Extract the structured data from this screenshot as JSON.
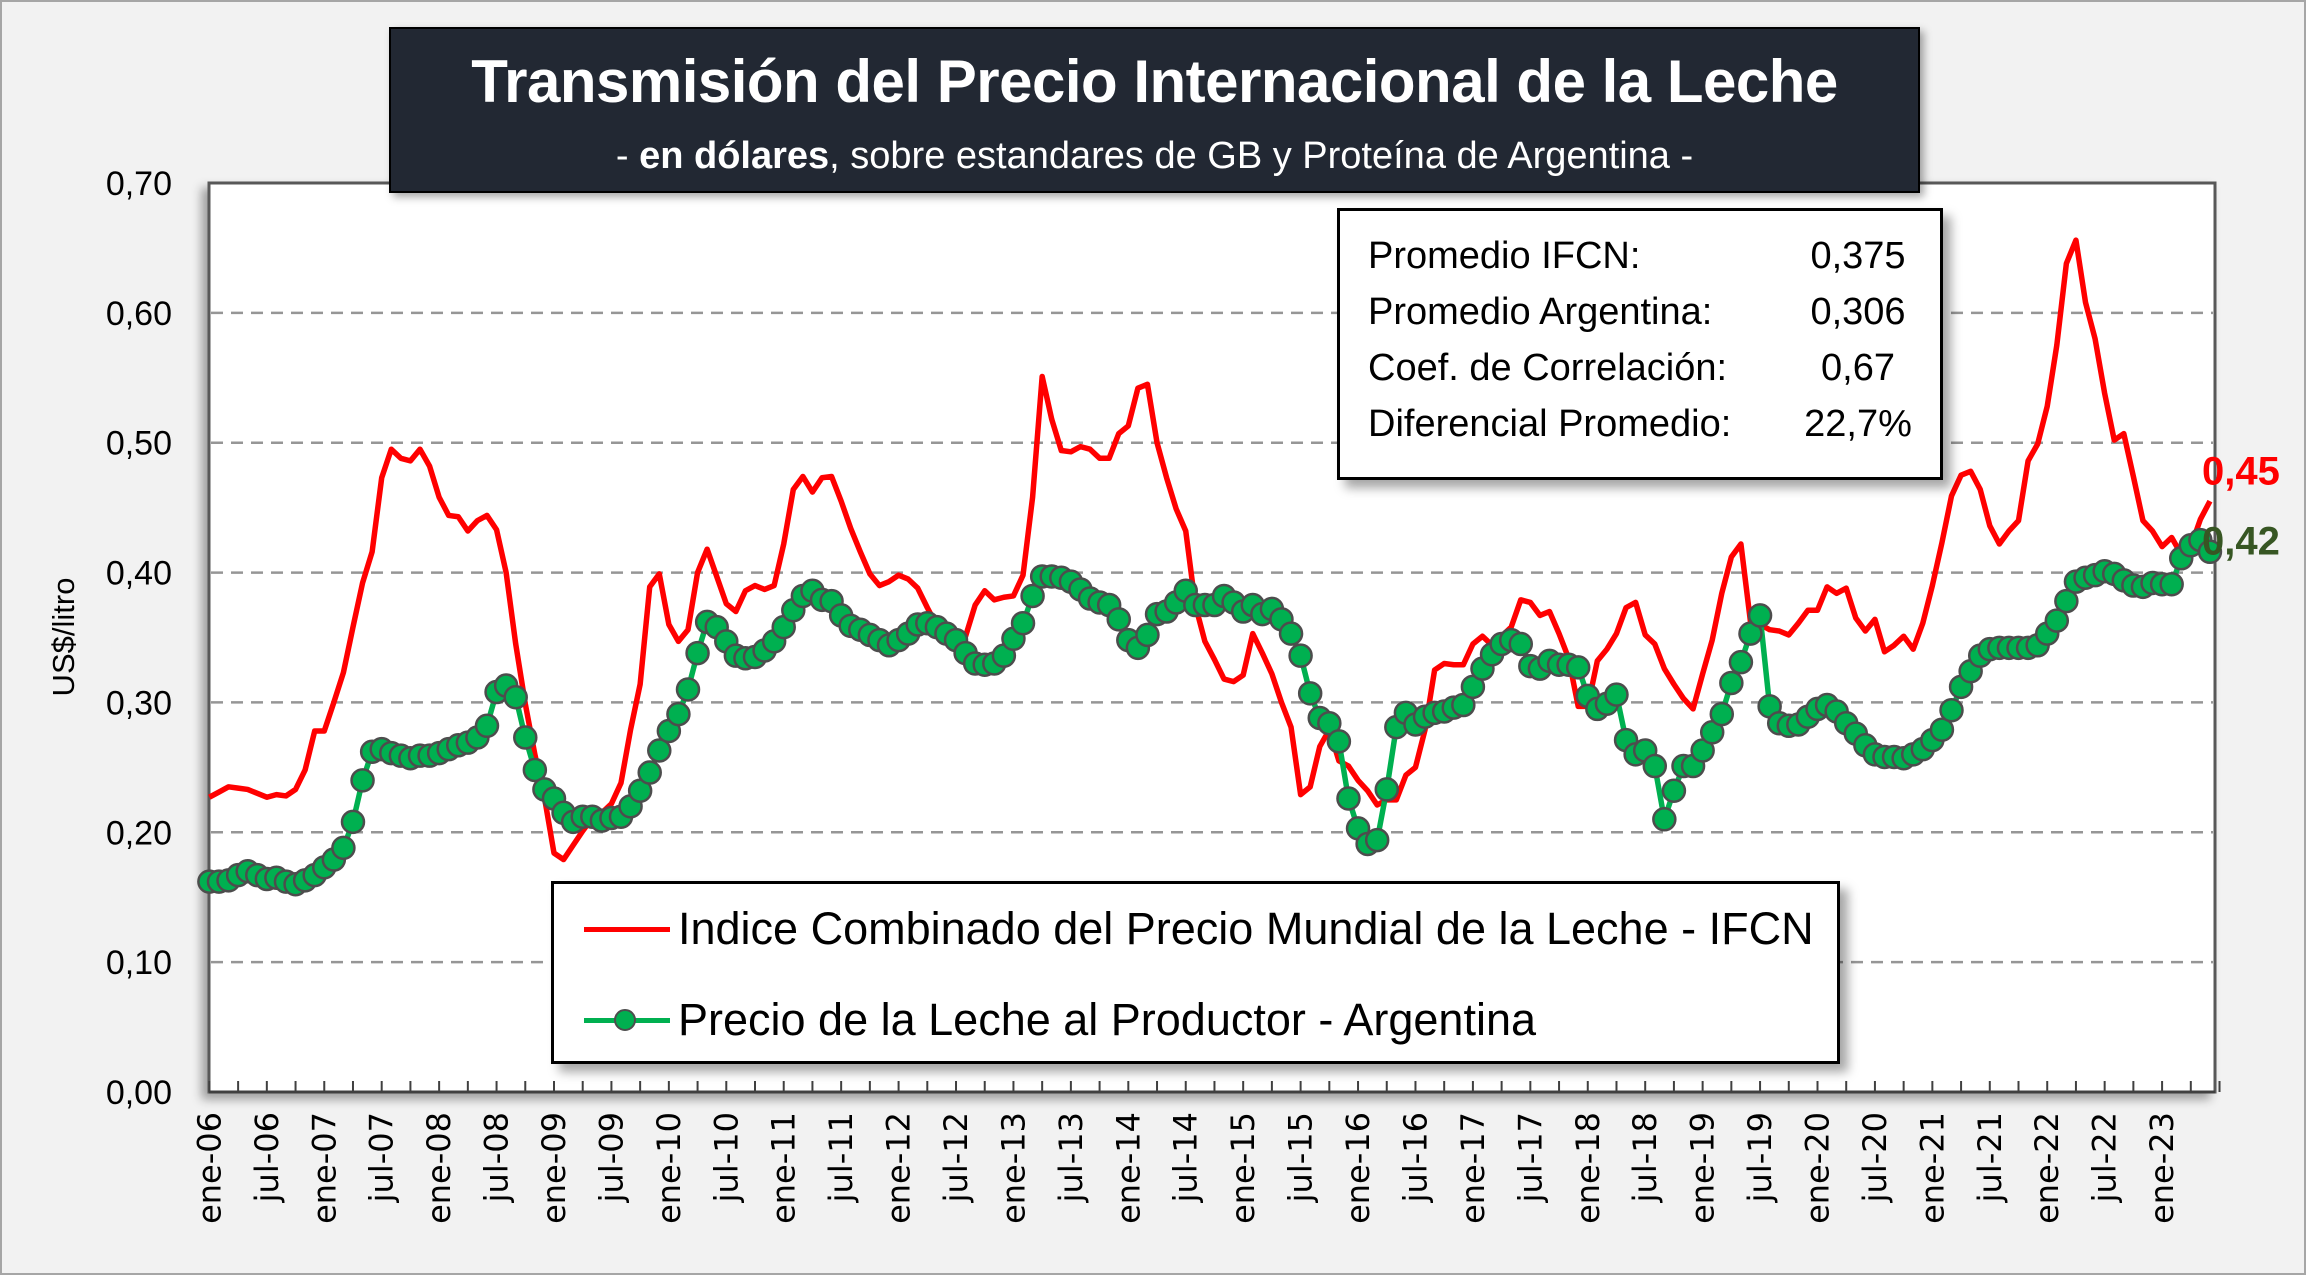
{
  "title": {
    "main": "Transmisión del Precio Internacional de la Leche",
    "sub_prefix": "- ",
    "sub_bold": "en dólares",
    "sub_suffix": ", sobre estandares de GB y Proteína de  Argentina -"
  },
  "stats": [
    {
      "label": "Promedio IFCN:",
      "value": "0,375"
    },
    {
      "label": "Promedio Argentina:",
      "value": "0,306"
    },
    {
      "label": "Coef. de Correlación:",
      "value": "0,67"
    },
    {
      "label": "Diferencial Promedio:",
      "value": "22,7%"
    }
  ],
  "end_labels": {
    "ifcn": "0,45",
    "argentina": "0,42"
  },
  "colors": {
    "ifcn": "#ff0000",
    "argentina": "#00b050",
    "argentina_label": "#375623",
    "title_bg": "#222833",
    "grid": "#969696"
  },
  "chart_data": {
    "type": "line",
    "title": "Transmisión del Precio Internacional de la Leche",
    "subtitle": "- en dólares, sobre estandares de GB y Proteína de  Argentina -",
    "xlabel": "",
    "ylabel": "US$/litro",
    "ylim": [
      0,
      0.7
    ],
    "y_ticks": [
      "0,00",
      "0,10",
      "0,20",
      "0,30",
      "0,40",
      "0,50",
      "0,60",
      "0,70"
    ],
    "x_start": "2006-01",
    "x_step": "month",
    "x_tick_labels": [
      "ene-06",
      "jul-06",
      "ene-07",
      "jul-07",
      "ene-08",
      "jul-08",
      "ene-09",
      "jul-09",
      "ene-10",
      "jul-10",
      "ene-11",
      "jul-11",
      "ene-12",
      "jul-12",
      "ene-13",
      "jul-13",
      "ene-14",
      "jul-14",
      "ene-15",
      "jul-15",
      "ene-16",
      "jul-16",
      "ene-17",
      "jul-17",
      "ene-18",
      "jul-18",
      "ene-19",
      "jul-19",
      "ene-20",
      "jul-20",
      "ene-21",
      "jul-21",
      "ene-22",
      "jul-22",
      "ene-23"
    ],
    "grid": true,
    "legend_position": "bottom-center",
    "series": [
      {
        "name": "Indice Combinado del Precio Mundial de la Leche - IFCN",
        "color": "#ff0000",
        "marker": false,
        "values": [
          0.227,
          0.231,
          0.235,
          0.234,
          0.233,
          0.23,
          0.227,
          0.229,
          0.228,
          0.233,
          0.248,
          0.278,
          0.278,
          0.3,
          0.323,
          0.358,
          0.392,
          0.416,
          0.473,
          0.495,
          0.488,
          0.486,
          0.495,
          0.482,
          0.458,
          0.444,
          0.443,
          0.432,
          0.44,
          0.444,
          0.433,
          0.4,
          0.345,
          0.299,
          0.26,
          0.227,
          0.184,
          0.179,
          0.19,
          0.201,
          0.211,
          0.215,
          0.222,
          0.238,
          0.279,
          0.314,
          0.389,
          0.399,
          0.36,
          0.347,
          0.356,
          0.4,
          0.418,
          0.397,
          0.376,
          0.37,
          0.386,
          0.39,
          0.387,
          0.39,
          0.422,
          0.464,
          0.474,
          0.462,
          0.473,
          0.474,
          0.455,
          0.434,
          0.416,
          0.399,
          0.39,
          0.393,
          0.398,
          0.395,
          0.388,
          0.373,
          0.359,
          0.355,
          0.35,
          0.351,
          0.375,
          0.386,
          0.379,
          0.381,
          0.382,
          0.398,
          0.458,
          0.551,
          0.518,
          0.494,
          0.493,
          0.497,
          0.495,
          0.488,
          0.488,
          0.507,
          0.513,
          0.542,
          0.545,
          0.5,
          0.473,
          0.449,
          0.432,
          0.375,
          0.347,
          0.333,
          0.318,
          0.316,
          0.321,
          0.353,
          0.338,
          0.322,
          0.3,
          0.281,
          0.229,
          0.235,
          0.266,
          0.279,
          0.255,
          0.251,
          0.24,
          0.232,
          0.221,
          0.225,
          0.225,
          0.244,
          0.25,
          0.279,
          0.325,
          0.33,
          0.329,
          0.329,
          0.345,
          0.351,
          0.344,
          0.351,
          0.358,
          0.379,
          0.377,
          0.367,
          0.37,
          0.353,
          0.334,
          0.297,
          0.297,
          0.332,
          0.341,
          0.353,
          0.373,
          0.377,
          0.352,
          0.345,
          0.326,
          0.314,
          0.303,
          0.295,
          0.322,
          0.348,
          0.384,
          0.412,
          0.422,
          0.362,
          0.36,
          0.356,
          0.355,
          0.352,
          0.361,
          0.371,
          0.371,
          0.389,
          0.384,
          0.388,
          0.365,
          0.355,
          0.364,
          0.339,
          0.344,
          0.351,
          0.341,
          0.361,
          0.39,
          0.423,
          0.459,
          0.475,
          0.478,
          0.464,
          0.436,
          0.422,
          0.432,
          0.44,
          0.486,
          0.499,
          0.528,
          0.575,
          0.638,
          0.656,
          0.608,
          0.58,
          0.538,
          0.502,
          0.507,
          0.474,
          0.44,
          0.432,
          0.42,
          0.427,
          0.414,
          0.42,
          0.441,
          0.455
        ]
      },
      {
        "name": "Precio de la Leche al Productor - Argentina",
        "color": "#00b050",
        "marker": true,
        "values": [
          0.162,
          0.162,
          0.163,
          0.167,
          0.17,
          0.167,
          0.164,
          0.165,
          0.162,
          0.16,
          0.163,
          0.167,
          0.173,
          0.179,
          0.188,
          0.208,
          0.24,
          0.262,
          0.264,
          0.261,
          0.259,
          0.257,
          0.259,
          0.259,
          0.261,
          0.264,
          0.267,
          0.269,
          0.273,
          0.282,
          0.308,
          0.313,
          0.304,
          0.273,
          0.248,
          0.233,
          0.226,
          0.215,
          0.208,
          0.212,
          0.212,
          0.209,
          0.211,
          0.212,
          0.22,
          0.232,
          0.246,
          0.263,
          0.278,
          0.291,
          0.31,
          0.338,
          0.362,
          0.358,
          0.347,
          0.336,
          0.334,
          0.335,
          0.34,
          0.347,
          0.358,
          0.371,
          0.382,
          0.386,
          0.379,
          0.378,
          0.367,
          0.359,
          0.356,
          0.352,
          0.348,
          0.344,
          0.348,
          0.353,
          0.36,
          0.361,
          0.358,
          0.353,
          0.348,
          0.338,
          0.33,
          0.329,
          0.33,
          0.336,
          0.349,
          0.361,
          0.382,
          0.397,
          0.397,
          0.396,
          0.393,
          0.387,
          0.38,
          0.377,
          0.375,
          0.364,
          0.348,
          0.342,
          0.352,
          0.368,
          0.37,
          0.377,
          0.386,
          0.375,
          0.375,
          0.375,
          0.382,
          0.377,
          0.37,
          0.375,
          0.368,
          0.372,
          0.364,
          0.353,
          0.336,
          0.307,
          0.288,
          0.284,
          0.27,
          0.226,
          0.203,
          0.191,
          0.194,
          0.233,
          0.281,
          0.292,
          0.283,
          0.289,
          0.292,
          0.293,
          0.296,
          0.298,
          0.312,
          0.326,
          0.337,
          0.345,
          0.348,
          0.345,
          0.328,
          0.326,
          0.332,
          0.329,
          0.329,
          0.327,
          0.305,
          0.295,
          0.299,
          0.306,
          0.271,
          0.26,
          0.263,
          0.251,
          0.21,
          0.232,
          0.251,
          0.251,
          0.263,
          0.277,
          0.291,
          0.315,
          0.331,
          0.353,
          0.367,
          0.297,
          0.284,
          0.282,
          0.283,
          0.289,
          0.295,
          0.298,
          0.293,
          0.284,
          0.276,
          0.267,
          0.26,
          0.258,
          0.258,
          0.257,
          0.26,
          0.264,
          0.271,
          0.279,
          0.294,
          0.312,
          0.324,
          0.336,
          0.341,
          0.342,
          0.342,
          0.342,
          0.342,
          0.344,
          0.353,
          0.363,
          0.378,
          0.393,
          0.396,
          0.398,
          0.401,
          0.399,
          0.394,
          0.39,
          0.389,
          0.392,
          0.391,
          0.391,
          0.411,
          0.421,
          0.425,
          0.416
        ]
      }
    ]
  }
}
